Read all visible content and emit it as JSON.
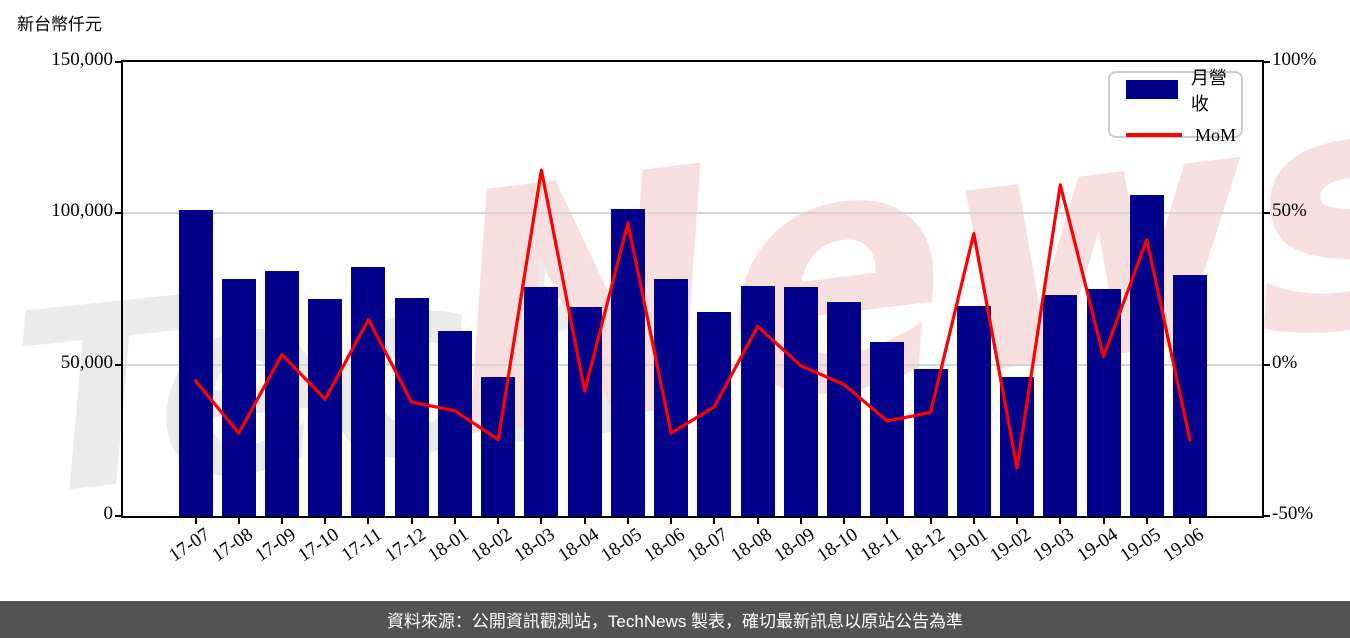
{
  "title": "新台幣仟元",
  "legend": {
    "bar_label": "月營收",
    "line_label": "MoM"
  },
  "caption": "資料來源：公開資訊觀測站，TechNews 製表，確切最新訊息以原站公告為準",
  "watermark": {
    "left_text": "Tech",
    "right_text": "News"
  },
  "colors": {
    "bar": "#00008b",
    "line": "#ff0000",
    "grid": "#d6d6d6",
    "axis": "#000000",
    "caption_bg": "#535353",
    "caption_text": "#ffffff",
    "watermark_gray": "#ebebeb",
    "watermark_pink": "#f7dfdf"
  },
  "chart_data": {
    "type": "bar",
    "title": "新台幣仟元",
    "categories": [
      "17-07",
      "17-08",
      "17-09",
      "17-10",
      "17-11",
      "17-12",
      "18-01",
      "18-02",
      "18-03",
      "18-04",
      "18-05",
      "18-06",
      "18-07",
      "18-08",
      "18-09",
      "18-10",
      "18-11",
      "18-12",
      "19-01",
      "19-02",
      "19-03",
      "19-04",
      "19-05",
      "19-06"
    ],
    "series": [
      {
        "name": "月營收",
        "type": "bar",
        "axis": "left",
        "unit": "新台幣仟元",
        "values": [
          101100,
          78300,
          80900,
          71700,
          82400,
          72200,
          61200,
          46000,
          75600,
          69000,
          101300,
          78400,
          67500,
          76000,
          75800,
          70800,
          57600,
          48500,
          69500,
          45800,
          73000,
          75000,
          106000,
          79600
        ]
      },
      {
        "name": "MoM",
        "type": "line",
        "axis": "right",
        "unit": "%",
        "values": [
          -5.3,
          -22.6,
          3.3,
          -11.4,
          14.9,
          -12.4,
          -15.2,
          -24.8,
          64.3,
          -8.7,
          46.8,
          -22.6,
          -13.9,
          12.6,
          -0.3,
          -6.6,
          -18.6,
          -15.8,
          43.3,
          -34.1,
          59.4,
          2.7,
          41.3,
          -24.9
        ]
      }
    ],
    "left_axis": {
      "ylim": [
        0,
        150000
      ],
      "ticks": [
        {
          "value": 150000,
          "label": "150,000"
        },
        {
          "value": 100000,
          "label": "100,000"
        },
        {
          "value": 50000,
          "label": "50,000"
        },
        {
          "value": 0,
          "label": "0"
        }
      ]
    },
    "right_axis": {
      "ylim": [
        -50,
        100
      ],
      "ticks": [
        {
          "value": 100,
          "label": "100%"
        },
        {
          "value": 50,
          "label": "50%"
        },
        {
          "value": 0,
          "label": "0%"
        },
        {
          "value": -50,
          "label": "-50%"
        }
      ]
    },
    "grid": "horizontal",
    "legend_position": "upper right"
  }
}
